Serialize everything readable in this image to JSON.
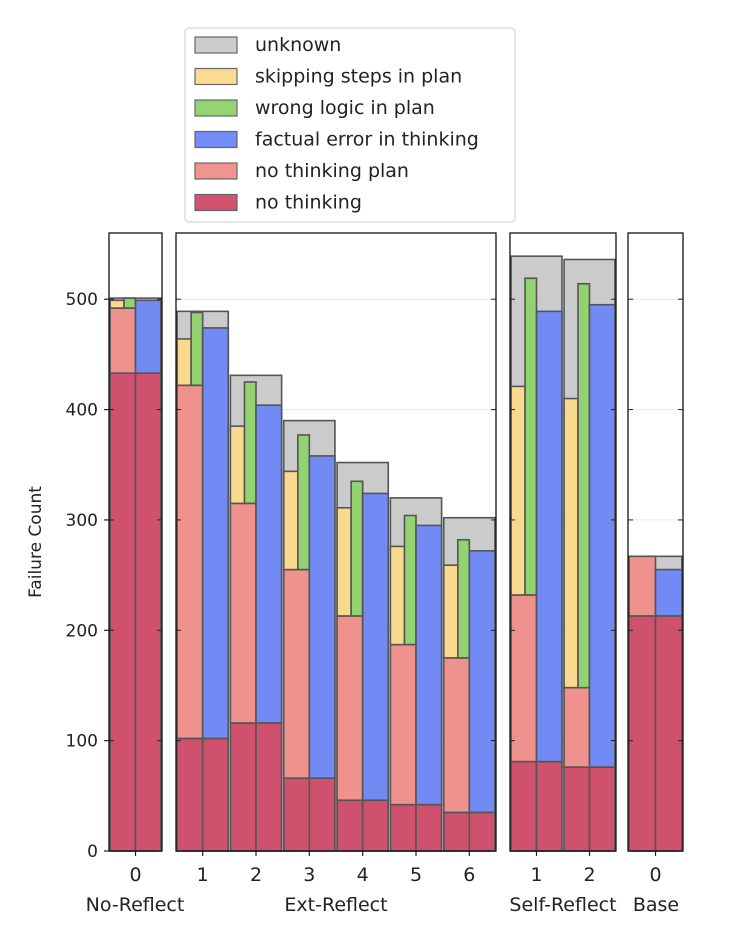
{
  "chart_data": {
    "type": "bar",
    "stacked": true,
    "ylabel": "Failure Count",
    "ylim": [
      0,
      560
    ],
    "y_ticks": [
      0,
      100,
      200,
      300,
      400,
      500
    ],
    "grid": "horizontal",
    "legend_position": "top",
    "legend": [
      {
        "label": "unknown",
        "color": "#c8c8c8"
      },
      {
        "label": "skipping steps in plan",
        "color": "#fbd98b"
      },
      {
        "label": "wrong logic in plan",
        "color": "#8fd26c"
      },
      {
        "label": "factual error in thinking",
        "color": "#6b86f5"
      },
      {
        "label": "no thinking plan",
        "color": "#f08d89"
      },
      {
        "label": "no thinking",
        "color": "#cf4a68"
      }
    ],
    "panels": [
      {
        "name": "No-Reflect",
        "groups": [
          {
            "tick": "0",
            "no_thinking": 433,
            "no_thinking_plan_top": 492,
            "plan_error_top": 501,
            "skipping_top": 499,
            "wrong_logic_top": 501,
            "factual_top": 499,
            "unknown_top": 501
          }
        ]
      },
      {
        "name": "Ext-Reflect",
        "groups": [
          {
            "tick": "1",
            "no_thinking": 102,
            "no_thinking_plan_top": 422,
            "skipping_top": 464,
            "wrong_logic_top": 488,
            "factual_top": 474,
            "unknown_top": 489
          },
          {
            "tick": "2",
            "no_thinking": 116,
            "no_thinking_plan_top": 315,
            "skipping_top": 385,
            "wrong_logic_top": 425,
            "factual_top": 404,
            "unknown_top": 431
          },
          {
            "tick": "3",
            "no_thinking": 66,
            "no_thinking_plan_top": 255,
            "skipping_top": 344,
            "wrong_logic_top": 377,
            "factual_top": 358,
            "unknown_top": 390
          },
          {
            "tick": "4",
            "no_thinking": 46,
            "no_thinking_plan_top": 213,
            "skipping_top": 311,
            "wrong_logic_top": 335,
            "factual_top": 324,
            "unknown_top": 352
          },
          {
            "tick": "5",
            "no_thinking": 42,
            "no_thinking_plan_top": 187,
            "skipping_top": 276,
            "wrong_logic_top": 304,
            "factual_top": 295,
            "unknown_top": 320
          },
          {
            "tick": "6",
            "no_thinking": 35,
            "no_thinking_plan_top": 175,
            "skipping_top": 259,
            "wrong_logic_top": 282,
            "factual_top": 272,
            "unknown_top": 302
          }
        ]
      },
      {
        "name": "Self-Reflect",
        "groups": [
          {
            "tick": "1",
            "no_thinking": 81,
            "no_thinking_plan_top": 232,
            "skipping_top": 421,
            "wrong_logic_top": 519,
            "factual_top": 489,
            "unknown_top": 539
          },
          {
            "tick": "2",
            "no_thinking": 76,
            "no_thinking_plan_top": 148,
            "skipping_top": 410,
            "wrong_logic_top": 514,
            "factual_top": 495,
            "unknown_top": 536
          }
        ]
      },
      {
        "name": "Base",
        "groups": [
          {
            "tick": "0",
            "no_thinking": 213,
            "no_thinking_plan_top": 267,
            "factual_top": 255,
            "unknown_top": 267
          }
        ]
      }
    ]
  }
}
